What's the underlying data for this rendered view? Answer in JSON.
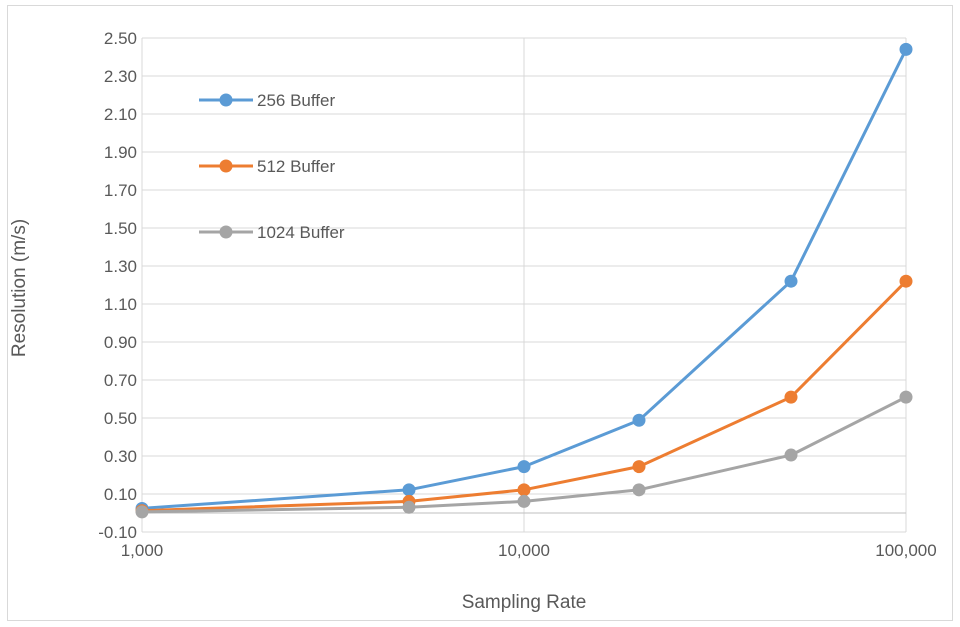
{
  "chart_data": {
    "type": "line",
    "x_scale": "log",
    "x": [
      1000,
      5000,
      10000,
      20000,
      50000,
      100000
    ],
    "series": [
      {
        "name": "256 Buffer",
        "values": [
          0.024,
          0.122,
          0.244,
          0.488,
          1.22,
          2.44
        ],
        "color": "#5b9bd5"
      },
      {
        "name": "512 Buffer",
        "values": [
          0.012,
          0.061,
          0.122,
          0.244,
          0.61,
          1.22
        ],
        "color": "#ed7d31"
      },
      {
        "name": "1024 Buffer",
        "values": [
          0.006,
          0.03,
          0.061,
          0.122,
          0.305,
          0.61
        ],
        "color": "#a5a5a5"
      }
    ],
    "xlabel": "Sampling Rate",
    "ylabel": "Resolution (m/s)",
    "xlim": [
      1000,
      100000
    ],
    "ylim": [
      -0.1,
      2.5
    ],
    "x_ticks": [
      1000,
      10000,
      100000
    ],
    "x_tick_labels": [
      "1,000",
      "10,000",
      "100,000"
    ],
    "y_ticks": [
      -0.1,
      0.1,
      0.3,
      0.5,
      0.7,
      0.9,
      1.1,
      1.3,
      1.5,
      1.7,
      1.9,
      2.1,
      2.3,
      2.5
    ],
    "y_tick_labels": [
      "-0.10",
      "0.10",
      "0.30",
      "0.50",
      "0.70",
      "0.90",
      "1.10",
      "1.30",
      "1.50",
      "1.70",
      "1.90",
      "2.10",
      "2.30",
      "2.50"
    ],
    "grid": true,
    "legend_position": "top-left"
  }
}
